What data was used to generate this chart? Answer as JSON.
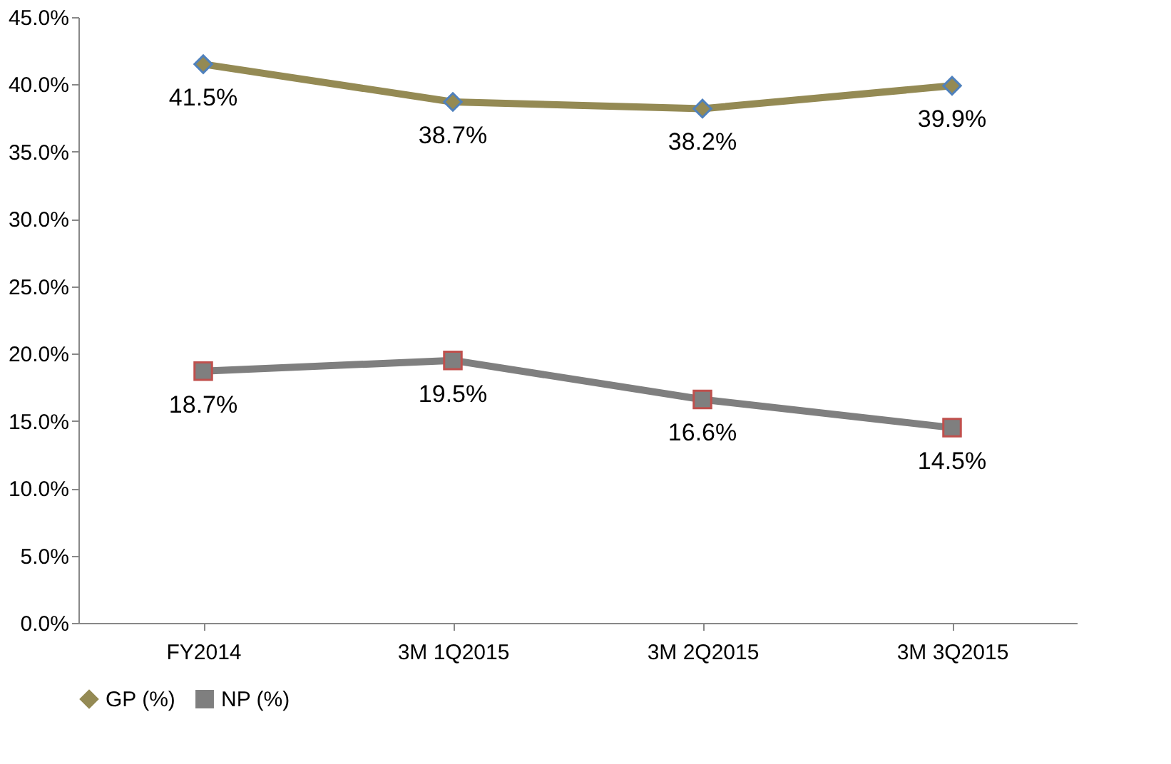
{
  "chart_data": {
    "type": "line",
    "categories": [
      "FY2014",
      "3M 1Q2015",
      "3M 2Q2015",
      "3M 3Q2015"
    ],
    "series": [
      {
        "name": "GP (%)",
        "color": "#948a54",
        "values": [
          41.5,
          38.7,
          38.2,
          39.9
        ],
        "value_labels": [
          "41.5%",
          "38.7%",
          "38.2%",
          "39.9%"
        ],
        "marker": "diamond"
      },
      {
        "name": "NP (%)",
        "color": "#7f7f7f",
        "values": [
          18.7,
          19.5,
          16.6,
          14.5
        ],
        "value_labels": [
          "18.7%",
          "19.5%",
          "16.6%",
          "14.5%"
        ],
        "marker": "square"
      }
    ],
    "ylim": [
      0,
      45
    ],
    "yticks": [
      {
        "value": 0,
        "label": "0.0%"
      },
      {
        "value": 5,
        "label": "5.0%"
      },
      {
        "value": 10,
        "label": "10.0%"
      },
      {
        "value": 15,
        "label": "15.0%"
      },
      {
        "value": 20,
        "label": "20.0%"
      },
      {
        "value": 25,
        "label": "25.0%"
      },
      {
        "value": 30,
        "label": "30.0%"
      },
      {
        "value": 35,
        "label": "35.0%"
      },
      {
        "value": 40,
        "label": "40.0%"
      },
      {
        "value": 45,
        "label": "45.0%"
      }
    ],
    "grid": false,
    "legend": "bottom",
    "line_style": "solid"
  }
}
